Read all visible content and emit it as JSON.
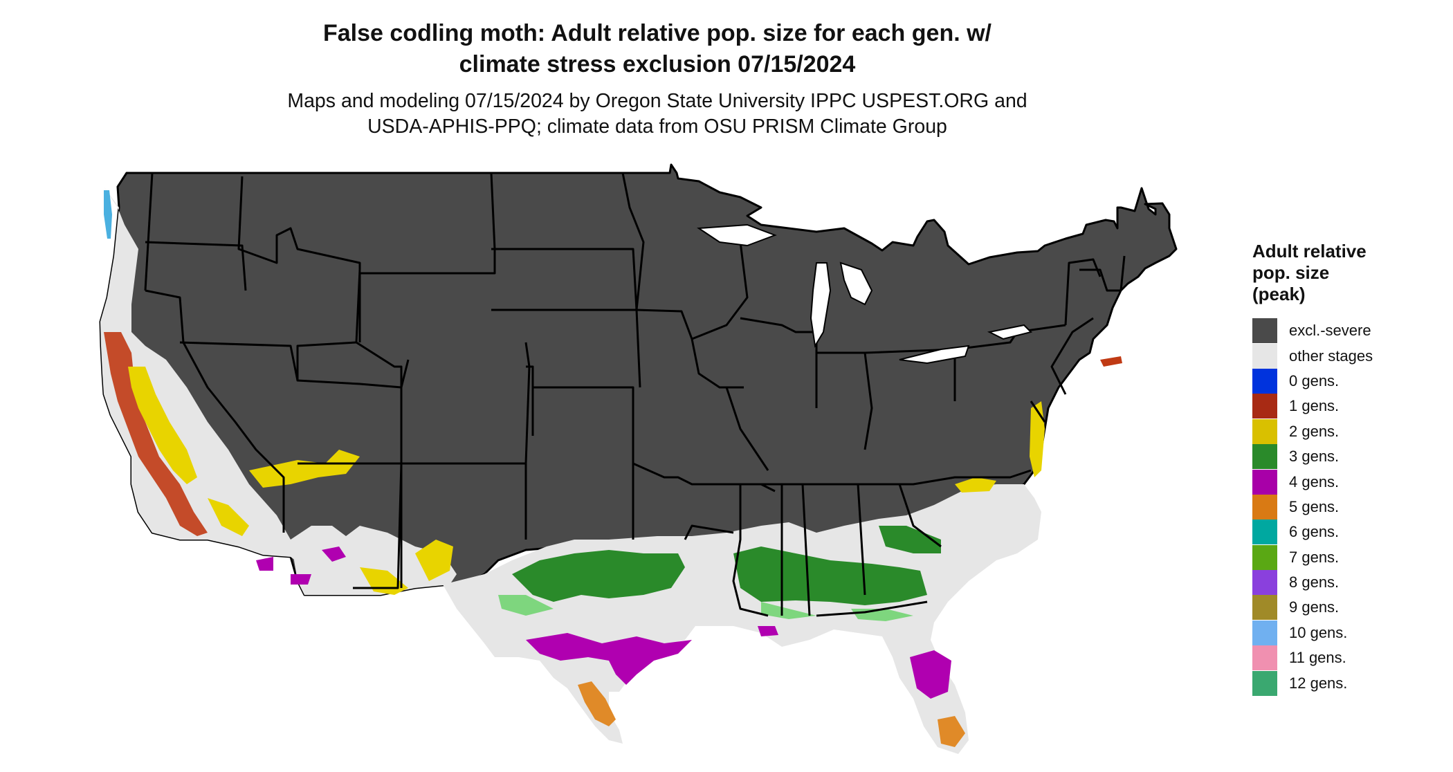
{
  "title": {
    "line1": "False codling moth: Adult relative pop. size for each gen. w/",
    "line2": "climate stress exclusion 07/15/2024"
  },
  "subtitle": {
    "line1": "Maps and modeling 07/15/2024 by Oregon State University IPPC USPEST.ORG and",
    "line2": "USDA-APHIS-PPQ; climate data from OSU PRISM Climate Group"
  },
  "map": {
    "region": "contiguous United States",
    "colors": {
      "excluded": "#4a4a4a",
      "other": "#e6e6e6",
      "border": "#000000",
      "light_green": "#7ed67e"
    }
  },
  "legend": {
    "title_line1": "Adult relative",
    "title_line2": "pop. size",
    "title_line3": "(peak)",
    "items": [
      {
        "label": "excl.-severe",
        "color": "#4a4a4a"
      },
      {
        "label": "other stages",
        "color": "#e6e6e6"
      },
      {
        "label": "0 gens.",
        "color": "#0033dd"
      },
      {
        "label": "1 gens.",
        "color": "#a82a14"
      },
      {
        "label": "2 gens.",
        "color": "#d9c000"
      },
      {
        "label": "3 gens.",
        "color": "#2a8a2a"
      },
      {
        "label": "4 gens.",
        "color": "#a800a8"
      },
      {
        "label": "5 gens.",
        "color": "#d97a14"
      },
      {
        "label": "6 gens.",
        "color": "#00a8a0"
      },
      {
        "label": "7 gens.",
        "color": "#5aa814"
      },
      {
        "label": "8 gens.",
        "color": "#8a40dd"
      },
      {
        "label": "9 gens.",
        "color": "#a08a28"
      },
      {
        "label": "10 gens.",
        "color": "#70b0f0"
      },
      {
        "label": "11 gens.",
        "color": "#f090b0"
      },
      {
        "label": "12 gens.",
        "color": "#3aa870"
      }
    ]
  }
}
